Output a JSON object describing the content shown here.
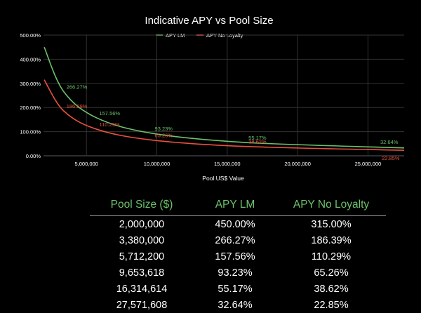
{
  "colors": {
    "background": "#000000",
    "lm": "#6cc26b",
    "no_loyalty": "#ea4f3d",
    "header": "#6cc26b"
  },
  "chart_data": {
    "type": "line",
    "title": "Indicative APY vs Pool Size",
    "xlabel": "Pool US$ Value",
    "ylabel": "",
    "xlim": [
      1950000,
      27571608
    ],
    "ylim": [
      0,
      500
    ],
    "x_ticks": [
      5000000,
      10000000,
      15000000,
      20000000,
      25000000
    ],
    "x_tick_labels": [
      "5,000,000",
      "10,000,000",
      "15,000,000",
      "20,000,000",
      "25,000,000"
    ],
    "y_ticks": [
      0,
      100,
      200,
      300,
      400,
      500
    ],
    "y_tick_labels": [
      "0.00%",
      "100.00%",
      "200.00%",
      "300.00%",
      "400.00%",
      "500.00%"
    ],
    "grid": true,
    "legend_position": "top",
    "series": [
      {
        "name": "APY LM",
        "color": "#6cc26b",
        "x": [
          2000000,
          3380000,
          5712200,
          9653618,
          16314614,
          27571608
        ],
        "y": [
          450.0,
          266.27,
          157.56,
          93.23,
          55.17,
          32.64
        ],
        "labels": [
          "",
          "266.27%",
          "157.56%",
          "93.23%",
          "55.17%",
          "32.64%"
        ]
      },
      {
        "name": "APY No Loyalty",
        "color": "#ea4f3d",
        "x": [
          2000000,
          3380000,
          5712200,
          9653618,
          16314614,
          27571608
        ],
        "y": [
          315.0,
          186.39,
          110.29,
          65.26,
          38.62,
          22.85
        ],
        "labels": [
          "",
          "186.39%",
          "110.29%",
          "65.26%",
          "38.62%",
          "22.85%"
        ]
      }
    ]
  },
  "table": {
    "headers": [
      "Pool Size ($)",
      "APY LM",
      "APY No Loyalty"
    ],
    "rows": [
      [
        "2,000,000",
        "450.00%",
        "315.00%"
      ],
      [
        "3,380,000",
        "266.27%",
        "186.39%"
      ],
      [
        "5,712,200",
        "157.56%",
        "110.29%"
      ],
      [
        "9,653,618",
        "93.23%",
        "65.26%"
      ],
      [
        "16,314,614",
        "55.17%",
        "38.62%"
      ],
      [
        "27,571,608",
        "32.64%",
        "22.85%"
      ]
    ]
  }
}
